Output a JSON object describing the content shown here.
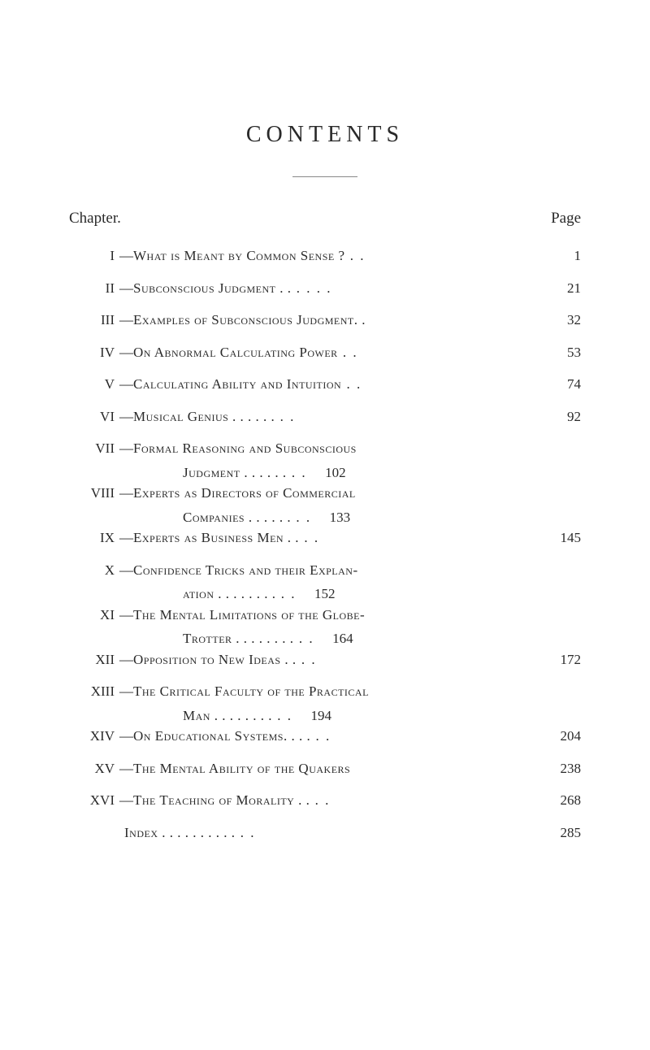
{
  "title": "CONTENTS",
  "header": {
    "left": "Chapter.",
    "right": "Page"
  },
  "entries": [
    {
      "num": "I",
      "dash": "—",
      "title": "What is Meant by Common Sense ?",
      "trail": "  . .",
      "page": "1"
    },
    {
      "num": "II",
      "dash": "—",
      "title": "Subconscious Judgment . .",
      "trail": "   . .    . .",
      "page": "21"
    },
    {
      "num": "III",
      "dash": "—",
      "title": "Examples of Subconscious Judgment. .",
      "trail": "",
      "page": "32"
    },
    {
      "num": "IV",
      "dash": "—",
      "title": "On Abnormal Calculating Power",
      "trail": "   . .",
      "page": "53"
    },
    {
      "num": "V",
      "dash": "—",
      "title": "Calculating Ability and Intuition",
      "trail": " . .",
      "page": "74"
    },
    {
      "num": "VI",
      "dash": "—",
      "title": "Musical Genius    . .    . .    . .",
      "trail": "   . .",
      "page": "92"
    },
    {
      "num": "VII",
      "dash": "—",
      "title_line1": "Formal Reasoning and Subconscious",
      "title_line2": "Judgment       . .    . .    . .",
      "trail": "   . .",
      "page": "102"
    },
    {
      "num": "VIII",
      "dash": "—",
      "title_line1": "Experts as Directors of Commercial",
      "title_line2": "Companies      . .    . .    . .",
      "trail": "   . .",
      "page": "133"
    },
    {
      "num": "IX",
      "dash": "—",
      "title": "Experts as Business Men      . .",
      "trail": "   . .",
      "page": "145"
    },
    {
      "num": "X",
      "dash": "—",
      "title_line1": "Confidence Tricks and their Explan-",
      "title_line2": "ation     . .    . .    . .    . .",
      "trail": "   . .",
      "page": "152"
    },
    {
      "num": "XI",
      "dash": "—",
      "title_line1": "The Mental Limitations of the Globe-",
      "title_line2": "Trotter . .    . .    . .    . .",
      "trail": "   . .",
      "page": "164"
    },
    {
      "num": "XII",
      "dash": "—",
      "title": "Opposition to New Ideas       . .",
      "trail": "   . .",
      "page": "172"
    },
    {
      "num": "XIII",
      "dash": "—",
      "title_line1": "The Critical Faculty of the Practical",
      "title_line2": "Man        . .    . .    . .    . .",
      "trail": "   . .",
      "page": "194"
    },
    {
      "num": "XIV",
      "dash": "—",
      "title": "On Educational Systems. .    . .",
      "trail": "   . .",
      "page": "204"
    },
    {
      "num": "XV",
      "dash": "—",
      "title": "The Mental Ability of the Quakers",
      "trail": "",
      "page": "238"
    },
    {
      "num": "XVI",
      "dash": "—",
      "title": "The Teaching of Morality     . .",
      "trail": "   . .",
      "page": "268"
    }
  ],
  "index": {
    "label": "Index . .    . .    . .    . .    . .",
    "trail": "   . .",
    "page": "285"
  }
}
